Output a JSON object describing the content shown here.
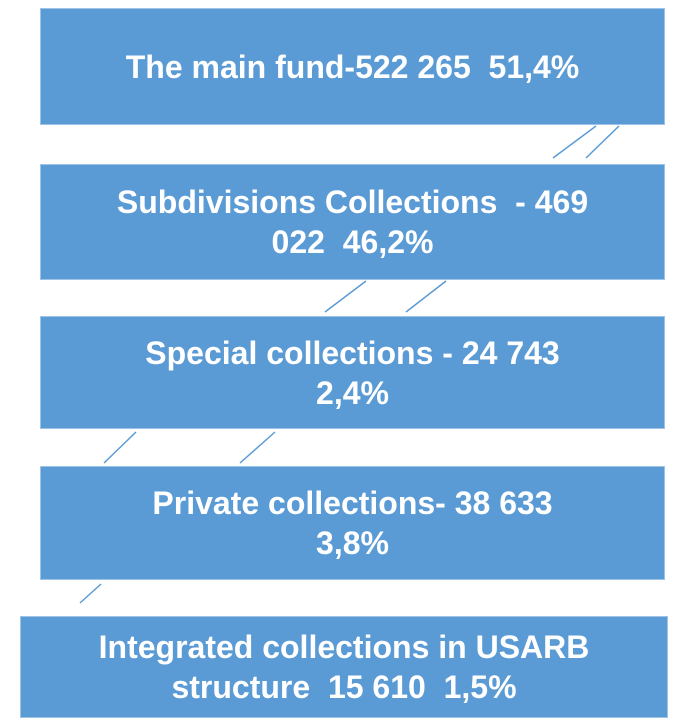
{
  "nodes": [
    {
      "lines": [
        "The main fund-522 265  51,4%"
      ]
    },
    {
      "lines": [
        "Subdivisions Collections  - 469",
        "022  46,2%"
      ]
    },
    {
      "lines": [
        "Special collections - 24 743",
        "2,4%"
      ]
    },
    {
      "lines": [
        "Private collections- 38 633",
        "3,8%"
      ]
    },
    {
      "lines": [
        "Integrated collections in USARB",
        "structure  15 610  1,5%"
      ]
    }
  ]
}
